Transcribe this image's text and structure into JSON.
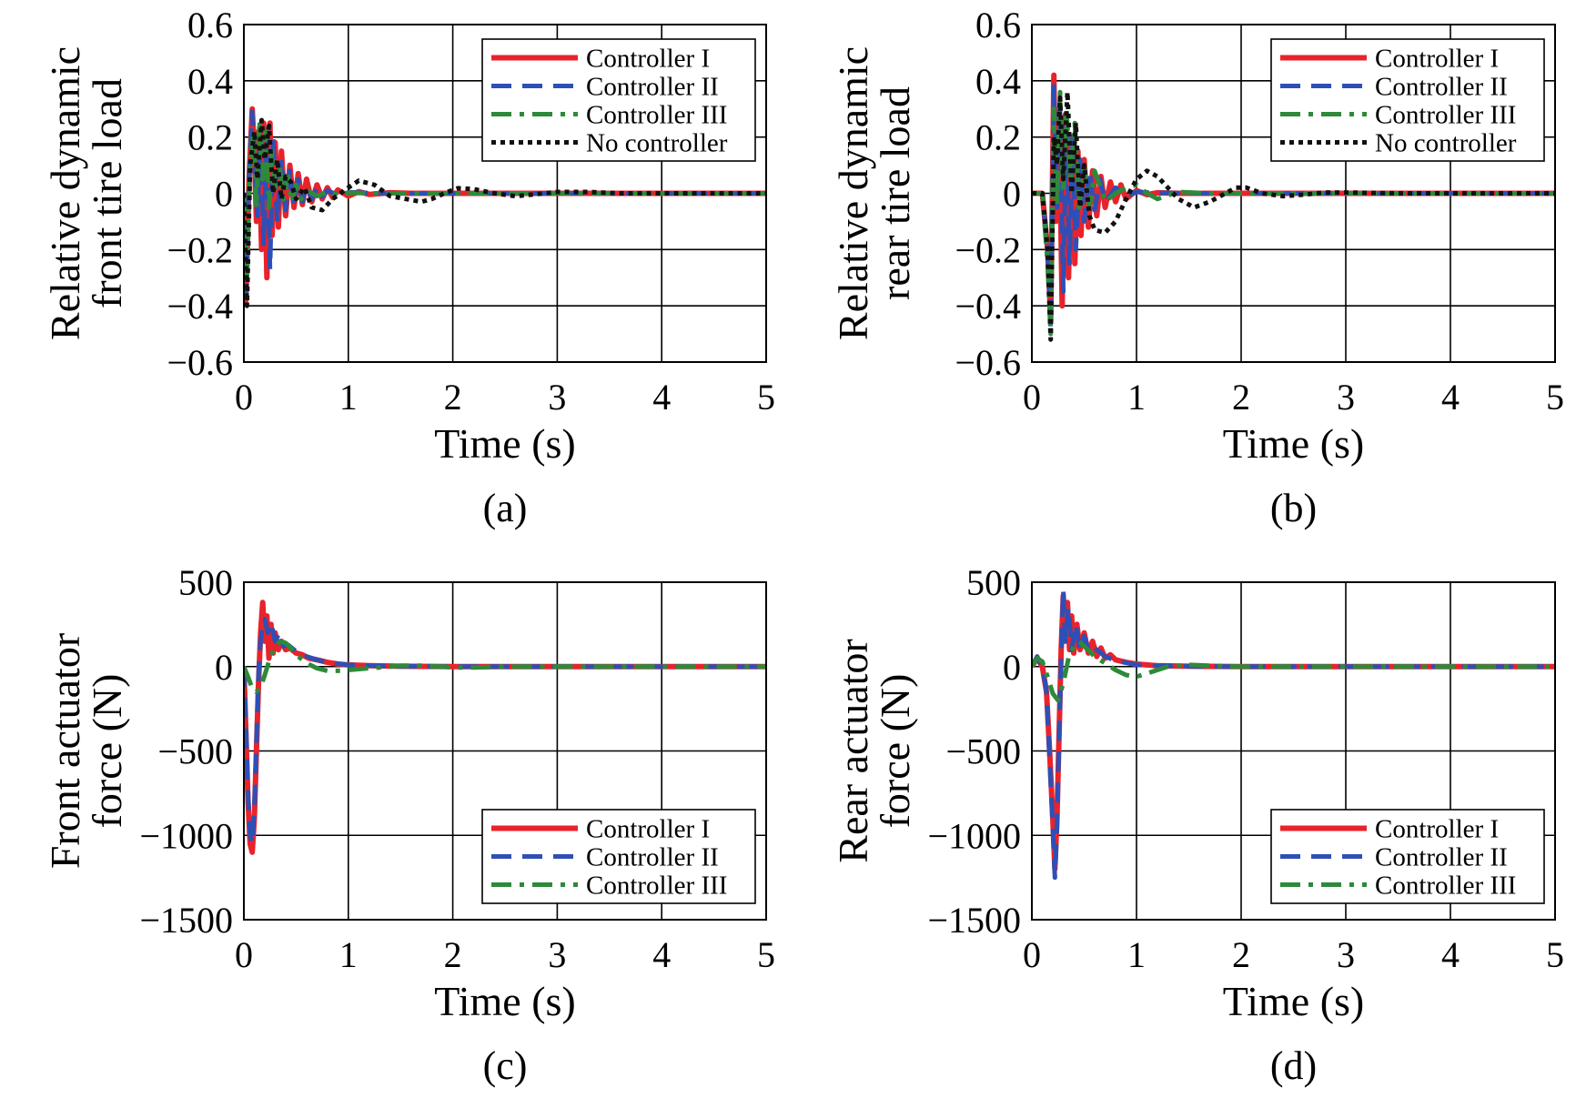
{
  "colors": {
    "controller_1": "#e8232b",
    "controller_2": "#2e4fb6",
    "controller_3": "#2e8a3a",
    "no_controller": "#111111"
  },
  "chart_data": [
    {
      "type": "line",
      "caption": "(a)",
      "xlabel": "Time (s)",
      "ylabel": [
        "Relative dynamic",
        "front tire load"
      ],
      "xlim": [
        0,
        5
      ],
      "ylim": [
        -0.6,
        0.6
      ],
      "xticks": [
        0,
        1,
        2,
        3,
        4,
        5
      ],
      "yticks": [
        -0.6,
        -0.4,
        -0.2,
        0,
        0.2,
        0.4,
        0.6
      ],
      "ytick_labels": [
        "−0.6",
        "−0.4",
        "−0.2",
        "0",
        "0.2",
        "0.4",
        "0.6"
      ],
      "grid": true,
      "legend_position": "top-right",
      "series": [
        {
          "name": "Controller I",
          "color_key": "controller_1",
          "dash": "solid",
          "x": [
            0,
            0.02,
            0.05,
            0.08,
            0.1,
            0.12,
            0.14,
            0.17,
            0.19,
            0.22,
            0.25,
            0.27,
            0.3,
            0.33,
            0.36,
            0.4,
            0.44,
            0.48,
            0.52,
            0.56,
            0.6,
            0.65,
            0.7,
            0.75,
            0.8,
            0.85,
            0.9,
            1.0,
            1.1,
            1.2,
            1.4,
            1.6,
            2.0,
            3.0,
            4.0,
            5.0
          ],
          "y": [
            0,
            -0.38,
            0.05,
            0.3,
            0.15,
            -0.1,
            0.22,
            -0.2,
            0.25,
            -0.3,
            0.25,
            -0.15,
            0.18,
            -0.12,
            0.15,
            -0.08,
            0.1,
            -0.05,
            0.07,
            -0.04,
            0.05,
            -0.03,
            0.03,
            -0.02,
            0.02,
            -0.015,
            0.012,
            -0.01,
            0.006,
            -0.004,
            0.002,
            0,
            0,
            0,
            0,
            0
          ]
        },
        {
          "name": "Controller II",
          "color_key": "controller_2",
          "dash": "dash",
          "x": [
            0,
            0.02,
            0.05,
            0.08,
            0.1,
            0.13,
            0.16,
            0.19,
            0.22,
            0.25,
            0.28,
            0.32,
            0.36,
            0.4,
            0.44,
            0.48,
            0.52,
            0.56,
            0.6,
            0.65,
            0.7,
            0.75,
            0.8,
            0.9,
            1.0,
            1.2,
            1.5,
            2.0,
            3.0,
            5.0
          ],
          "y": [
            0,
            -0.36,
            0.05,
            0.29,
            0.12,
            -0.08,
            0.2,
            -0.18,
            0.22,
            -0.27,
            0.2,
            -0.1,
            0.12,
            -0.06,
            0.08,
            -0.04,
            0.05,
            -0.03,
            0.03,
            -0.02,
            0.02,
            -0.012,
            0.01,
            -0.006,
            0.004,
            0.001,
            0,
            0,
            0,
            0
          ]
        },
        {
          "name": "Controller III",
          "color_key": "controller_3",
          "dash": "dashdot",
          "x": [
            0,
            0.03,
            0.06,
            0.09,
            0.12,
            0.15,
            0.18,
            0.21,
            0.24,
            0.27,
            0.3,
            0.34,
            0.38,
            0.42,
            0.46,
            0.5,
            0.55,
            0.6,
            0.7,
            0.8,
            0.9,
            1.0,
            1.2,
            1.5,
            2.0,
            3.0,
            5.0
          ],
          "y": [
            0,
            -0.3,
            0.1,
            0.22,
            -0.05,
            0.26,
            0.05,
            0.22,
            -0.05,
            0.15,
            0.02,
            0.1,
            -0.02,
            0.06,
            -0.03,
            0.03,
            -0.02,
            0.01,
            -0.01,
            0.005,
            -0.004,
            0.002,
            0,
            0,
            0,
            0,
            0
          ]
        },
        {
          "name": "No controller",
          "color_key": "no_controller",
          "dash": "dot",
          "x": [
            0,
            0.03,
            0.06,
            0.1,
            0.13,
            0.17,
            0.2,
            0.24,
            0.28,
            0.32,
            0.36,
            0.4,
            0.45,
            0.5,
            0.58,
            0.65,
            0.75,
            0.85,
            1.0,
            1.1,
            1.25,
            1.4,
            1.55,
            1.7,
            1.8,
            1.95,
            2.05,
            2.2,
            2.4,
            2.6,
            2.75,
            3.0,
            3.3,
            3.6,
            4.0,
            4.5,
            5.0
          ],
          "y": [
            0,
            -0.4,
            0.1,
            0.22,
            0.05,
            0.26,
            0.12,
            0.24,
            0.0,
            0.12,
            -0.02,
            0.06,
            0.04,
            -0.02,
            0.02,
            -0.05,
            -0.06,
            -0.02,
            0.02,
            0.045,
            0.03,
            -0.01,
            -0.02,
            -0.03,
            -0.02,
            0.005,
            0.018,
            0.015,
            0.0,
            -0.01,
            -0.005,
            0.005,
            0.005,
            0.0,
            0.0,
            0.0,
            0.0
          ]
        }
      ]
    },
    {
      "type": "line",
      "caption": "(b)",
      "xlabel": "Time (s)",
      "ylabel": [
        "Relative dynamic",
        "rear tire load"
      ],
      "xlim": [
        0,
        5
      ],
      "ylim": [
        -0.6,
        0.6
      ],
      "xticks": [
        0,
        1,
        2,
        3,
        4,
        5
      ],
      "yticks": [
        -0.6,
        -0.4,
        -0.2,
        0,
        0.2,
        0.4,
        0.6
      ],
      "ytick_labels": [
        "−0.6",
        "−0.4",
        "−0.2",
        "0",
        "0.2",
        "0.4",
        "0.6"
      ],
      "grid": true,
      "legend_position": "top-right",
      "series": [
        {
          "name": "Controller I",
          "color_key": "controller_1",
          "dash": "solid",
          "x": [
            0,
            0.1,
            0.15,
            0.18,
            0.21,
            0.23,
            0.26,
            0.29,
            0.32,
            0.35,
            0.38,
            0.41,
            0.44,
            0.47,
            0.5,
            0.54,
            0.58,
            0.62,
            0.66,
            0.7,
            0.75,
            0.8,
            0.85,
            0.9,
            1.0,
            1.1,
            1.2,
            1.4,
            2.0,
            3.0,
            5.0
          ],
          "y": [
            0,
            0.0,
            -0.2,
            -0.45,
            0.42,
            -0.1,
            0.3,
            -0.4,
            0.28,
            -0.3,
            0.2,
            -0.25,
            0.15,
            -0.15,
            0.12,
            -0.12,
            0.08,
            -0.08,
            0.06,
            -0.05,
            0.04,
            -0.03,
            0.03,
            -0.02,
            0.01,
            -0.005,
            0.002,
            0,
            0,
            0,
            0
          ]
        },
        {
          "name": "Controller II",
          "color_key": "controller_2",
          "dash": "dash",
          "x": [
            0,
            0.1,
            0.15,
            0.18,
            0.21,
            0.24,
            0.27,
            0.3,
            0.33,
            0.36,
            0.39,
            0.42,
            0.46,
            0.5,
            0.55,
            0.6,
            0.65,
            0.7,
            0.8,
            0.9,
            1.0,
            1.2,
            1.5,
            2.0,
            3.0,
            5.0
          ],
          "y": [
            0,
            0.0,
            -0.2,
            -0.48,
            0.38,
            -0.05,
            0.3,
            -0.35,
            0.25,
            -0.25,
            0.2,
            -0.2,
            0.12,
            -0.1,
            0.08,
            -0.06,
            0.05,
            -0.03,
            0.02,
            -0.01,
            0.005,
            0.002,
            0,
            0,
            0,
            0
          ]
        },
        {
          "name": "Controller III",
          "color_key": "controller_3",
          "dash": "dashdot",
          "x": [
            0,
            0.1,
            0.15,
            0.18,
            0.21,
            0.24,
            0.27,
            0.3,
            0.33,
            0.37,
            0.41,
            0.45,
            0.5,
            0.55,
            0.6,
            0.7,
            0.8,
            0.9,
            1.0,
            1.1,
            1.2,
            1.4,
            1.7,
            2.0,
            3.0,
            5.0
          ],
          "y": [
            0,
            0.0,
            -0.25,
            -0.5,
            0.3,
            -0.05,
            0.36,
            0.0,
            0.3,
            0.05,
            0.25,
            -0.05,
            0.1,
            -0.05,
            0.08,
            -0.03,
            0.0,
            0.02,
            0.03,
            0.0,
            -0.02,
            0.005,
            0.0,
            0.0,
            0.0,
            0.0
          ]
        },
        {
          "name": "No controller",
          "color_key": "no_controller",
          "dash": "dot",
          "x": [
            0,
            0.1,
            0.15,
            0.18,
            0.21,
            0.24,
            0.27,
            0.3,
            0.34,
            0.38,
            0.42,
            0.46,
            0.5,
            0.55,
            0.6,
            0.7,
            0.8,
            0.9,
            1.0,
            1.1,
            1.2,
            1.3,
            1.4,
            1.55,
            1.7,
            1.85,
            1.95,
            2.05,
            2.2,
            2.4,
            2.6,
            2.8,
            3.0,
            3.5,
            4.0,
            5.0
          ],
          "y": [
            0,
            0.0,
            -0.2,
            -0.52,
            0.2,
            0.1,
            0.34,
            0.05,
            0.36,
            0.0,
            0.25,
            -0.05,
            0.1,
            -0.08,
            -0.13,
            -0.14,
            -0.1,
            -0.02,
            0.05,
            0.08,
            0.06,
            0.02,
            -0.02,
            -0.05,
            -0.03,
            0.0,
            0.02,
            0.02,
            0.0,
            -0.01,
            -0.005,
            0.003,
            0.003,
            0.0,
            0.0,
            0.0
          ]
        }
      ]
    },
    {
      "type": "line",
      "caption": "(c)",
      "xlabel": "Time (s)",
      "ylabel": [
        "Front actuator",
        "force (N)"
      ],
      "xlim": [
        0,
        5
      ],
      "ylim": [
        -1500,
        500
      ],
      "xticks": [
        0,
        1,
        2,
        3,
        4,
        5
      ],
      "yticks": [
        -1500,
        -1000,
        -500,
        0,
        500
      ],
      "ytick_labels": [
        "−1500",
        "−1000",
        "−500",
        "0",
        "500"
      ],
      "grid": true,
      "legend_position": "bottom-right",
      "series": [
        {
          "name": "Controller I",
          "color_key": "controller_1",
          "dash": "solid",
          "x": [
            0,
            0.02,
            0.04,
            0.06,
            0.08,
            0.1,
            0.12,
            0.14,
            0.16,
            0.18,
            0.2,
            0.22,
            0.24,
            0.26,
            0.28,
            0.3,
            0.33,
            0.36,
            0.4,
            0.44,
            0.5,
            0.56,
            0.62,
            0.7,
            0.8,
            0.9,
            1.0,
            1.2,
            1.5,
            2.0,
            3.0,
            5.0
          ],
          "y": [
            0,
            -400,
            -800,
            -1050,
            -1100,
            -900,
            -500,
            -100,
            200,
            380,
            150,
            300,
            50,
            250,
            80,
            200,
            100,
            150,
            100,
            110,
            80,
            70,
            50,
            40,
            25,
            15,
            10,
            5,
            2,
            0,
            0,
            0
          ]
        },
        {
          "name": "Controller II",
          "color_key": "controller_2",
          "dash": "dash",
          "x": [
            0,
            0.02,
            0.04,
            0.06,
            0.08,
            0.1,
            0.12,
            0.14,
            0.16,
            0.18,
            0.2,
            0.23,
            0.26,
            0.3,
            0.34,
            0.38,
            0.42,
            0.5,
            0.6,
            0.7,
            0.8,
            1.0,
            1.2,
            1.5,
            2.0,
            3.0,
            5.0
          ],
          "y": [
            0,
            -350,
            -750,
            -1000,
            -1050,
            -850,
            -450,
            -50,
            150,
            250,
            280,
            200,
            260,
            150,
            200,
            120,
            130,
            90,
            60,
            40,
            25,
            10,
            5,
            2,
            0,
            0,
            0
          ]
        },
        {
          "name": "Controller III",
          "color_key": "controller_3",
          "dash": "dashdot",
          "x": [
            0,
            0.04,
            0.08,
            0.12,
            0.16,
            0.2,
            0.25,
            0.3,
            0.35,
            0.4,
            0.45,
            0.5,
            0.6,
            0.7,
            0.8,
            0.9,
            1.0,
            1.1,
            1.3,
            1.5,
            1.7,
            1.9,
            2.0,
            2.2,
            2.5,
            3.0,
            5.0
          ],
          "y": [
            0,
            -60,
            -130,
            -150,
            -120,
            -50,
            50,
            120,
            150,
            140,
            110,
            70,
            20,
            -10,
            -25,
            -25,
            -20,
            -15,
            -5,
            5,
            5,
            0,
            -5,
            -5,
            0,
            0,
            0
          ]
        }
      ]
    },
    {
      "type": "line",
      "caption": "(d)",
      "xlabel": "Time (s)",
      "ylabel": [
        "Rear actuator",
        "force (N)"
      ],
      "xlim": [
        0,
        5
      ],
      "ylim": [
        -1500,
        500
      ],
      "xticks": [
        0,
        1,
        2,
        3,
        4,
        5
      ],
      "yticks": [
        -1500,
        -1000,
        -500,
        0,
        500
      ],
      "ytick_labels": [
        "−1500",
        "−1000",
        "−500",
        "0",
        "500"
      ],
      "grid": true,
      "legend_position": "bottom-right",
      "series": [
        {
          "name": "Controller I",
          "color_key": "controller_1",
          "dash": "solid",
          "x": [
            0,
            0.05,
            0.1,
            0.14,
            0.17,
            0.2,
            0.22,
            0.24,
            0.26,
            0.28,
            0.3,
            0.32,
            0.34,
            0.36,
            0.38,
            0.4,
            0.43,
            0.46,
            0.5,
            0.54,
            0.58,
            0.62,
            0.66,
            0.7,
            0.75,
            0.8,
            0.9,
            1.0,
            1.2,
            1.5,
            2.0,
            3.0,
            5.0
          ],
          "y": [
            0,
            50,
            0,
            -150,
            -500,
            -900,
            -1200,
            -900,
            -400,
            100,
            420,
            150,
            380,
            100,
            300,
            80,
            250,
            100,
            200,
            80,
            150,
            60,
            110,
            50,
            70,
            40,
            25,
            15,
            5,
            2,
            0,
            0,
            0
          ]
        },
        {
          "name": "Controller II",
          "color_key": "controller_2",
          "dash": "dash",
          "x": [
            0,
            0.05,
            0.1,
            0.14,
            0.17,
            0.2,
            0.22,
            0.24,
            0.26,
            0.28,
            0.3,
            0.32,
            0.35,
            0.38,
            0.42,
            0.46,
            0.5,
            0.55,
            0.6,
            0.7,
            0.8,
            1.0,
            1.2,
            1.5,
            2.0,
            3.0,
            5.0
          ],
          "y": [
            0,
            60,
            0,
            -150,
            -550,
            -950,
            -1250,
            -950,
            -450,
            50,
            460,
            150,
            350,
            100,
            250,
            100,
            180,
            80,
            110,
            60,
            35,
            10,
            5,
            2,
            0,
            0,
            0
          ]
        },
        {
          "name": "Controller III",
          "color_key": "controller_3",
          "dash": "dashdot",
          "x": [
            0,
            0.05,
            0.1,
            0.15,
            0.2,
            0.25,
            0.3,
            0.35,
            0.4,
            0.45,
            0.5,
            0.55,
            0.6,
            0.7,
            0.8,
            0.9,
            1.0,
            1.1,
            1.2,
            1.3,
            1.5,
            1.7,
            2.0,
            3.0,
            5.0
          ],
          "y": [
            0,
            50,
            30,
            -60,
            -160,
            -200,
            -100,
            50,
            120,
            150,
            120,
            90,
            60,
            20,
            -20,
            -50,
            -60,
            -40,
            -20,
            0,
            10,
            5,
            0,
            0,
            0
          ]
        }
      ]
    }
  ]
}
